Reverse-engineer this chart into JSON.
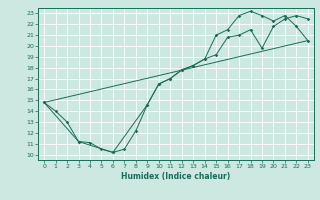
{
  "xlabel": "Humidex (Indice chaleur)",
  "background_color": "#cce8e0",
  "line_color": "#1a6b5a",
  "xlim": [
    -0.5,
    23.5
  ],
  "ylim": [
    9.5,
    23.5
  ],
  "xticks": [
    0,
    1,
    2,
    3,
    4,
    5,
    6,
    7,
    8,
    9,
    10,
    11,
    12,
    13,
    14,
    15,
    16,
    17,
    18,
    19,
    20,
    21,
    22,
    23
  ],
  "yticks": [
    10,
    11,
    12,
    13,
    14,
    15,
    16,
    17,
    18,
    19,
    20,
    21,
    22,
    23
  ],
  "series1_x": [
    0,
    1,
    2,
    3,
    4,
    5,
    6,
    7,
    8,
    9,
    10,
    11,
    12,
    13,
    14,
    15,
    16,
    17,
    18,
    19,
    20,
    21,
    22,
    23
  ],
  "series1_y": [
    14.8,
    14.0,
    13.0,
    11.2,
    11.1,
    10.5,
    10.2,
    10.5,
    12.2,
    14.6,
    16.5,
    17.0,
    17.8,
    18.2,
    18.8,
    19.2,
    20.8,
    21.0,
    21.5,
    19.8,
    21.8,
    22.5,
    22.8,
    22.5
  ],
  "series2_x": [
    0,
    3,
    6,
    9,
    10,
    11,
    12,
    13,
    14,
    15,
    16,
    17,
    18,
    19,
    20,
    21,
    22,
    23
  ],
  "series2_y": [
    14.8,
    11.2,
    10.2,
    14.6,
    16.5,
    17.0,
    17.8,
    18.2,
    18.8,
    21.0,
    21.5,
    22.8,
    23.2,
    22.8,
    22.3,
    22.8,
    21.8,
    20.5
  ],
  "series3_x": [
    0,
    23
  ],
  "series3_y": [
    14.8,
    20.5
  ]
}
